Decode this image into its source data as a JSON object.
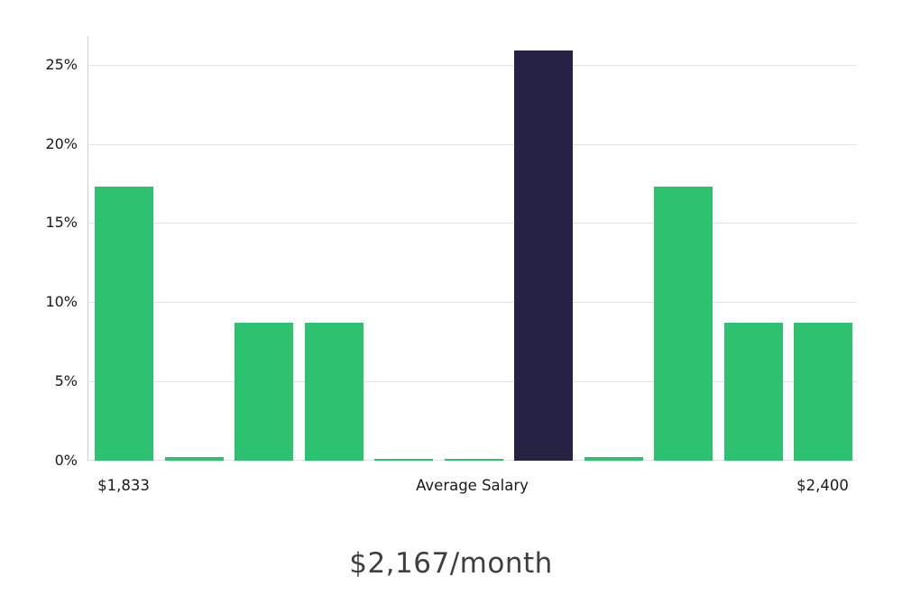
{
  "chart_data": {
    "type": "bar",
    "title": "$2,167/month",
    "xlabel": "",
    "ylabel": "",
    "x_tick_labels": [
      "$1,833",
      "Average Salary",
      "$2,400"
    ],
    "y_tick_labels": [
      "0%",
      "5%",
      "10%",
      "15%",
      "20%",
      "25%"
    ],
    "y_tick_values": [
      0,
      5,
      10,
      15,
      20,
      25
    ],
    "ylim": [
      0,
      26.8
    ],
    "values": [
      17.3,
      0.2,
      8.7,
      8.7,
      0.1,
      0.1,
      25.9,
      0.2,
      17.3,
      8.7,
      8.7
    ],
    "bar_colors": [
      "green",
      "green",
      "green",
      "green",
      "green",
      "green",
      "highlight",
      "green",
      "green",
      "green",
      "green"
    ],
    "highlight_index": 6,
    "grid": true,
    "legend": false,
    "palette": {
      "green": "#2DC26F",
      "highlight": "#262243"
    }
  },
  "colors": {
    "grid": "#e3e3e3",
    "axis": "#cfcfcf",
    "tick_text": "#1a1a1a",
    "title_text": "#3f3f3f"
  }
}
